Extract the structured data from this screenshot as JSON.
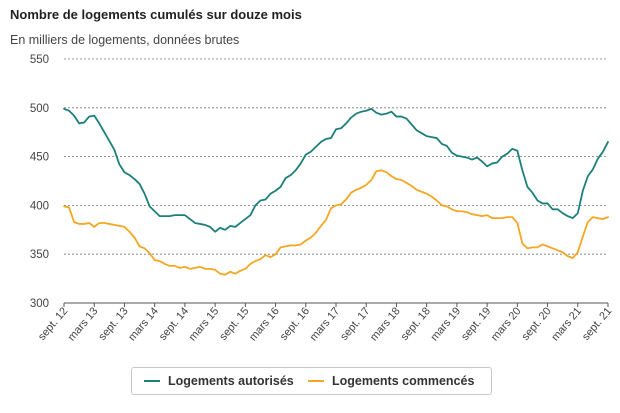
{
  "chart_data": {
    "type": "line",
    "title": "Nombre de logements cumulés sur douze mois",
    "subtitle": "En milliers de logements, données brutes",
    "ylim": [
      300,
      550
    ],
    "yticks": [
      300,
      350,
      400,
      450,
      500,
      550
    ],
    "grid": true,
    "legend_position": "bottom-center",
    "x_tick_labels": [
      "sept. 12",
      "mars 13",
      "sept. 13",
      "mars 14",
      "sept. 14",
      "mars 15",
      "sept. 15",
      "mars 16",
      "sept. 16",
      "mars 17",
      "sept. 17",
      "mars 18",
      "sept. 18",
      "mars 19",
      "sept. 19",
      "mars 20",
      "sept. 20",
      "mars 21",
      "sept. 21"
    ],
    "x_start": "2012-09",
    "x_end": "2021-09",
    "series": [
      {
        "name": "Logements autorisés",
        "color": "#1b7f7a",
        "points": [
          [
            "2012-09",
            499
          ],
          [
            "2012-10",
            497
          ],
          [
            "2012-11",
            492
          ],
          [
            "2012-12",
            484
          ],
          [
            "2013-01",
            485
          ],
          [
            "2013-02",
            491
          ],
          [
            "2013-03",
            492
          ],
          [
            "2013-04",
            484
          ],
          [
            "2013-05",
            475
          ],
          [
            "2013-06",
            466
          ],
          [
            "2013-07",
            457
          ],
          [
            "2013-08",
            442
          ],
          [
            "2013-09",
            434
          ],
          [
            "2013-10",
            431
          ],
          [
            "2013-11",
            427
          ],
          [
            "2013-12",
            422
          ],
          [
            "2014-01",
            412
          ],
          [
            "2014-02",
            399
          ],
          [
            "2014-03",
            394
          ],
          [
            "2014-04",
            389
          ],
          [
            "2014-05",
            389
          ],
          [
            "2014-06",
            389
          ],
          [
            "2014-07",
            390
          ],
          [
            "2014-08",
            390
          ],
          [
            "2014-09",
            390
          ],
          [
            "2014-10",
            386
          ],
          [
            "2014-11",
            382
          ],
          [
            "2014-12",
            381
          ],
          [
            "2015-01",
            380
          ],
          [
            "2015-02",
            378
          ],
          [
            "2015-03",
            373
          ],
          [
            "2015-04",
            377
          ],
          [
            "2015-05",
            375
          ],
          [
            "2015-06",
            379
          ],
          [
            "2015-07",
            378
          ],
          [
            "2015-08",
            382
          ],
          [
            "2015-09",
            386
          ],
          [
            "2015-10",
            390
          ],
          [
            "2015-11",
            400
          ],
          [
            "2015-12",
            405
          ],
          [
            "2016-01",
            406
          ],
          [
            "2016-02",
            412
          ],
          [
            "2016-03",
            415
          ],
          [
            "2016-04",
            419
          ],
          [
            "2016-05",
            428
          ],
          [
            "2016-06",
            431
          ],
          [
            "2016-07",
            436
          ],
          [
            "2016-08",
            443
          ],
          [
            "2016-09",
            452
          ],
          [
            "2016-10",
            455
          ],
          [
            "2016-11",
            460
          ],
          [
            "2016-12",
            465
          ],
          [
            "2017-01",
            468
          ],
          [
            "2017-02",
            469
          ],
          [
            "2017-03",
            478
          ],
          [
            "2017-04",
            479
          ],
          [
            "2017-05",
            484
          ],
          [
            "2017-06",
            490
          ],
          [
            "2017-07",
            494
          ],
          [
            "2017-08",
            496
          ],
          [
            "2017-09",
            497
          ],
          [
            "2017-10",
            499
          ],
          [
            "2017-11",
            495
          ],
          [
            "2017-12",
            493
          ],
          [
            "2018-01",
            494
          ],
          [
            "2018-02",
            496
          ],
          [
            "2018-03",
            491
          ],
          [
            "2018-04",
            491
          ],
          [
            "2018-05",
            489
          ],
          [
            "2018-06",
            483
          ],
          [
            "2018-07",
            477
          ],
          [
            "2018-08",
            474
          ],
          [
            "2018-09",
            471
          ],
          [
            "2018-10",
            470
          ],
          [
            "2018-11",
            469
          ],
          [
            "2018-12",
            463
          ],
          [
            "2019-01",
            461
          ],
          [
            "2019-02",
            454
          ],
          [
            "2019-03",
            451
          ],
          [
            "2019-04",
            450
          ],
          [
            "2019-05",
            449
          ],
          [
            "2019-06",
            447
          ],
          [
            "2019-07",
            449
          ],
          [
            "2019-08",
            445
          ],
          [
            "2019-09",
            440
          ],
          [
            "2019-10",
            443
          ],
          [
            "2019-11",
            444
          ],
          [
            "2019-12",
            450
          ],
          [
            "2020-01",
            453
          ],
          [
            "2020-02",
            458
          ],
          [
            "2020-03",
            456
          ],
          [
            "2020-04",
            436
          ],
          [
            "2020-05",
            419
          ],
          [
            "2020-06",
            413
          ],
          [
            "2020-07",
            405
          ],
          [
            "2020-08",
            402
          ],
          [
            "2020-09",
            402
          ],
          [
            "2020-10",
            396
          ],
          [
            "2020-11",
            396
          ],
          [
            "2020-12",
            392
          ],
          [
            "2021-01",
            389
          ],
          [
            "2021-02",
            387
          ],
          [
            "2021-03",
            392
          ],
          [
            "2021-04",
            415
          ],
          [
            "2021-05",
            430
          ],
          [
            "2021-06",
            437
          ],
          [
            "2021-07",
            448
          ],
          [
            "2021-08",
            455
          ],
          [
            "2021-09",
            465
          ]
        ]
      },
      {
        "name": "Logements commencés",
        "color": "#f5a623",
        "points": [
          [
            "2012-09",
            399
          ],
          [
            "2012-10",
            398
          ],
          [
            "2012-11",
            383
          ],
          [
            "2012-12",
            381
          ],
          [
            "2013-01",
            381
          ],
          [
            "2013-02",
            382
          ],
          [
            "2013-03",
            378
          ],
          [
            "2013-04",
            382
          ],
          [
            "2013-05",
            382
          ],
          [
            "2013-06",
            381
          ],
          [
            "2013-07",
            380
          ],
          [
            "2013-08",
            379
          ],
          [
            "2013-09",
            378
          ],
          [
            "2013-10",
            373
          ],
          [
            "2013-11",
            367
          ],
          [
            "2013-12",
            358
          ],
          [
            "2014-01",
            356
          ],
          [
            "2014-02",
            351
          ],
          [
            "2014-03",
            344
          ],
          [
            "2014-04",
            343
          ],
          [
            "2014-05",
            340
          ],
          [
            "2014-06",
            338
          ],
          [
            "2014-07",
            338
          ],
          [
            "2014-08",
            336
          ],
          [
            "2014-09",
            337
          ],
          [
            "2014-10",
            335
          ],
          [
            "2014-11",
            336
          ],
          [
            "2014-12",
            337
          ],
          [
            "2015-01",
            335
          ],
          [
            "2015-02",
            335
          ],
          [
            "2015-03",
            334
          ],
          [
            "2015-04",
            330
          ],
          [
            "2015-05",
            329
          ],
          [
            "2015-06",
            332
          ],
          [
            "2015-07",
            330
          ],
          [
            "2015-08",
            333
          ],
          [
            "2015-09",
            335
          ],
          [
            "2015-10",
            340
          ],
          [
            "2015-11",
            343
          ],
          [
            "2015-12",
            345
          ],
          [
            "2016-01",
            349
          ],
          [
            "2016-02",
            347
          ],
          [
            "2016-03",
            350
          ],
          [
            "2016-04",
            357
          ],
          [
            "2016-05",
            358
          ],
          [
            "2016-06",
            359
          ],
          [
            "2016-07",
            359
          ],
          [
            "2016-08",
            360
          ],
          [
            "2016-09",
            364
          ],
          [
            "2016-10",
            367
          ],
          [
            "2016-11",
            372
          ],
          [
            "2016-12",
            379
          ],
          [
            "2017-01",
            385
          ],
          [
            "2017-02",
            397
          ],
          [
            "2017-03",
            400
          ],
          [
            "2017-04",
            401
          ],
          [
            "2017-05",
            406
          ],
          [
            "2017-06",
            413
          ],
          [
            "2017-07",
            416
          ],
          [
            "2017-08",
            418
          ],
          [
            "2017-09",
            421
          ],
          [
            "2017-10",
            426
          ],
          [
            "2017-11",
            435
          ],
          [
            "2017-12",
            436
          ],
          [
            "2018-01",
            434
          ],
          [
            "2018-02",
            430
          ],
          [
            "2018-03",
            427
          ],
          [
            "2018-04",
            426
          ],
          [
            "2018-05",
            423
          ],
          [
            "2018-06",
            420
          ],
          [
            "2018-07",
            416
          ],
          [
            "2018-08",
            414
          ],
          [
            "2018-09",
            412
          ],
          [
            "2018-10",
            409
          ],
          [
            "2018-11",
            405
          ],
          [
            "2018-12",
            400
          ],
          [
            "2019-01",
            399
          ],
          [
            "2019-02",
            396
          ],
          [
            "2019-03",
            394
          ],
          [
            "2019-04",
            394
          ],
          [
            "2019-05",
            393
          ],
          [
            "2019-06",
            391
          ],
          [
            "2019-07",
            390
          ],
          [
            "2019-08",
            389
          ],
          [
            "2019-09",
            390
          ],
          [
            "2019-10",
            387
          ],
          [
            "2019-11",
            387
          ],
          [
            "2019-12",
            387
          ],
          [
            "2020-01",
            388
          ],
          [
            "2020-02",
            388
          ],
          [
            "2020-03",
            382
          ],
          [
            "2020-04",
            361
          ],
          [
            "2020-05",
            356
          ],
          [
            "2020-06",
            357
          ],
          [
            "2020-07",
            357
          ],
          [
            "2020-08",
            360
          ],
          [
            "2020-09",
            358
          ],
          [
            "2020-10",
            356
          ],
          [
            "2020-11",
            354
          ],
          [
            "2020-12",
            352
          ],
          [
            "2021-01",
            348
          ],
          [
            "2021-02",
            346
          ],
          [
            "2021-03",
            352
          ],
          [
            "2021-04",
            368
          ],
          [
            "2021-05",
            383
          ],
          [
            "2021-06",
            388
          ],
          [
            "2021-07",
            387
          ],
          [
            "2021-08",
            386
          ],
          [
            "2021-09",
            388
          ]
        ]
      }
    ]
  }
}
